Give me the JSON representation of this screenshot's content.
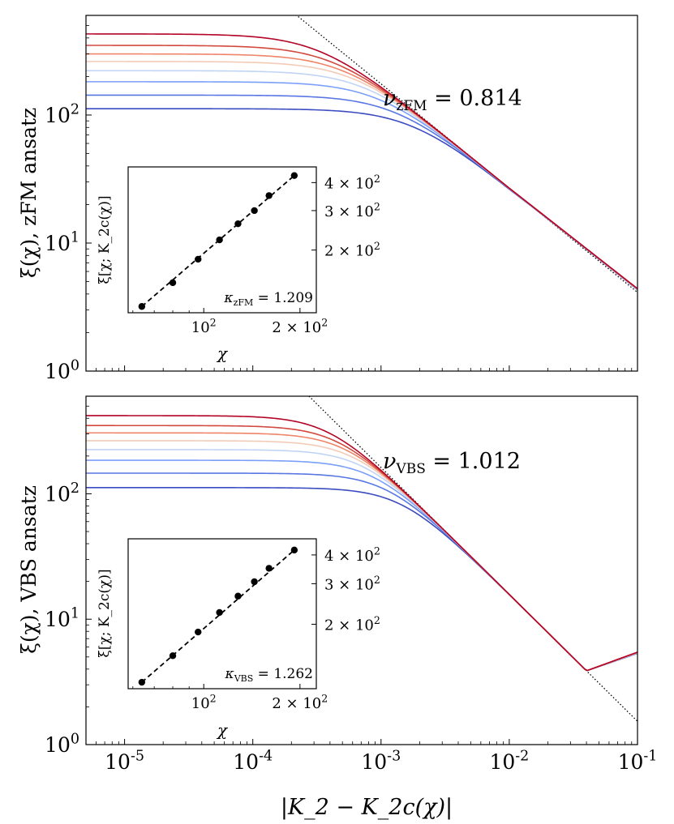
{
  "colors": {
    "series": [
      "#3b4cc0",
      "#5977e3",
      "#7b9ff9",
      "#c0d4f5",
      "#f2cbb7",
      "#ee8468",
      "#d1493f",
      "#b40426"
    ],
    "guide": "#000000",
    "axes": "#000000"
  },
  "chart_data": [
    {
      "type": "line",
      "xscale": "log",
      "yscale": "log",
      "xlim": [
        5e-06,
        0.1
      ],
      "ylim": [
        1,
        600
      ],
      "ylabel": "ξ(χ), zFM ansatz",
      "xlabel": "",
      "yticks": [
        "10^0",
        "10^1",
        "10^2"
      ],
      "xticks": [],
      "annotation": {
        "prefix": "ν",
        "subscript": "zFM",
        "suffix": " = 0.814"
      },
      "power_law": {
        "exponent": 0.814,
        "y_at_x_1e-3": 175
      },
      "series": [
        {
          "plateau": 112
        },
        {
          "plateau": 143
        },
        {
          "plateau": 182
        },
        {
          "plateau": 222
        },
        {
          "plateau": 262
        },
        {
          "plateau": 300
        },
        {
          "plateau": 350
        },
        {
          "plateau": 430
        }
      ],
      "tail_shift": 0.025,
      "inset": {
        "type": "scatter",
        "xscale": "log",
        "yscale": "log",
        "xlim": [
          58,
          225
        ],
        "ylim": [
          105,
          470
        ],
        "xlabel": "χ",
        "ylabel": "ξ[χ; K_2c(χ)]",
        "xticks": [
          {
            "value": 100,
            "base": "10",
            "exp": "2"
          },
          {
            "value": 200,
            "base": "2 × 10",
            "exp": "2"
          }
        ],
        "yticks": [
          {
            "value": 200,
            "base": "2 × 10",
            "exp": "2"
          },
          {
            "value": 300,
            "base": "3 × 10",
            "exp": "2"
          },
          {
            "value": 400,
            "base": "4 × 10",
            "exp": "2"
          }
        ],
        "x": [
          64,
          80,
          96,
          112,
          128,
          144,
          160,
          192
        ],
        "y": [
          112,
          143,
          182,
          222,
          262,
          300,
          350,
          430
        ],
        "kappa": {
          "prefix": "κ",
          "subscript": "zFM",
          "suffix": " = 1.209"
        }
      }
    },
    {
      "type": "line",
      "xscale": "log",
      "yscale": "log",
      "xlim": [
        5e-06,
        0.1
      ],
      "ylim": [
        1,
        600
      ],
      "ylabel": "ξ(χ), VBS ansatz",
      "xlabel": "|K_2 − K_2c(χ)|",
      "yticks": [
        "10^0",
        "10^1",
        "10^2"
      ],
      "xticks": [
        "10^-5",
        "10^-4",
        "10^-3",
        "10^-2",
        "10^-1"
      ],
      "annotation": {
        "prefix": "ν",
        "subscript": "VBS",
        "suffix": " = 1.012"
      },
      "power_law": {
        "exponent": 1.012,
        "y_at_x_1e-3": 162
      },
      "series": [
        {
          "plateau": 112
        },
        {
          "plateau": 146
        },
        {
          "plateau": 185
        },
        {
          "plateau": 225
        },
        {
          "plateau": 265
        },
        {
          "plateau": 306
        },
        {
          "plateau": 350
        },
        {
          "plateau": 420
        }
      ],
      "minimum": {
        "x": 0.04,
        "y": 2.9
      },
      "inset": {
        "type": "scatter",
        "xscale": "log",
        "yscale": "log",
        "xlim": [
          58,
          225
        ],
        "ylim": [
          105,
          470
        ],
        "xlabel": "χ",
        "ylabel": "ξ[χ; K_2c(χ)]",
        "xticks": [
          {
            "value": 100,
            "base": "10",
            "exp": "2"
          },
          {
            "value": 200,
            "base": "2 × 10",
            "exp": "2"
          }
        ],
        "yticks": [
          {
            "value": 200,
            "base": "2 × 10",
            "exp": "2"
          },
          {
            "value": 300,
            "base": "3 × 10",
            "exp": "2"
          },
          {
            "value": 400,
            "base": "4 × 10",
            "exp": "2"
          }
        ],
        "x": [
          64,
          80,
          96,
          112,
          128,
          144,
          160,
          192
        ],
        "y": [
          112,
          146,
          185,
          225,
          265,
          306,
          350,
          420
        ],
        "kappa": {
          "prefix": "κ",
          "subscript": "VBS",
          "suffix": " = 1.262"
        }
      }
    }
  ]
}
